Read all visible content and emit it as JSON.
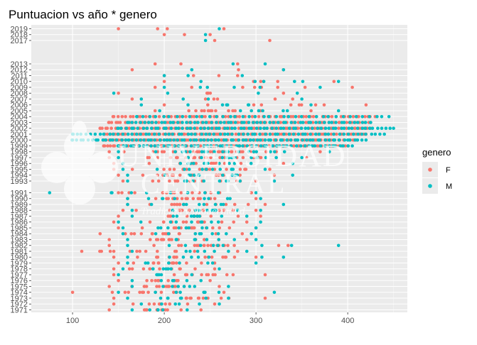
{
  "chart_data": {
    "type": "scatter",
    "title": "Puntuacion vs año * genero",
    "xlabel": "",
    "ylabel": "",
    "xlim": [
      55,
      465
    ],
    "x_ticks": [
      100,
      200,
      300,
      400
    ],
    "ylim": [
      1971,
      2019
    ],
    "y_ticks": [
      1971,
      1972,
      1973,
      1974,
      1975,
      1976,
      1977,
      1978,
      1979,
      1980,
      1981,
      1982,
      1983,
      1984,
      1985,
      1986,
      1987,
      1988,
      1989,
      1990,
      1991,
      1993,
      1994,
      1995,
      1996,
      1997,
      1998,
      1999,
      2000,
      2001,
      2002,
      2003,
      2004,
      2005,
      2006,
      2007,
      2008,
      2009,
      2010,
      2011,
      2012,
      2013,
      2017,
      2018,
      2019
    ],
    "grid": true,
    "legend": {
      "title": "genero",
      "position": "right",
      "entries": [
        "F",
        "M"
      ]
    },
    "colors": {
      "F": "#F8766D",
      "M": "#00BFC4",
      "panel": "#EBEBEB",
      "grid": "#FFFFFF"
    },
    "series": [
      {
        "name": "F",
        "color": "#F8766D",
        "ranges": [
          {
            "y": 1971,
            "min": 140,
            "max": 240,
            "n": 14
          },
          {
            "y": 1972,
            "min": 145,
            "max": 255,
            "n": 12
          },
          {
            "y": 1973,
            "min": 145,
            "max": 310,
            "n": 14
          },
          {
            "y": 1974,
            "min": 100,
            "max": 265,
            "n": 14
          },
          {
            "y": 1975,
            "min": 140,
            "max": 260,
            "n": 16
          },
          {
            "y": 1976,
            "min": 150,
            "max": 250,
            "n": 12
          },
          {
            "y": 1977,
            "min": 145,
            "max": 310,
            "n": 14
          },
          {
            "y": 1978,
            "min": 145,
            "max": 255,
            "n": 14
          },
          {
            "y": 1979,
            "min": 150,
            "max": 255,
            "n": 14
          },
          {
            "y": 1980,
            "min": 145,
            "max": 300,
            "n": 16
          },
          {
            "y": 1981,
            "min": 110,
            "max": 280,
            "n": 14
          },
          {
            "y": 1982,
            "min": 140,
            "max": 335,
            "n": 18
          },
          {
            "y": 1983,
            "min": 140,
            "max": 290,
            "n": 16
          },
          {
            "y": 1984,
            "min": 130,
            "max": 285,
            "n": 16
          },
          {
            "y": 1985,
            "min": 150,
            "max": 300,
            "n": 16
          },
          {
            "y": 1986,
            "min": 145,
            "max": 290,
            "n": 16
          },
          {
            "y": 1987,
            "min": 150,
            "max": 305,
            "n": 14
          },
          {
            "y": 1988,
            "min": 155,
            "max": 300,
            "n": 14
          },
          {
            "y": 1989,
            "min": 160,
            "max": 310,
            "n": 16
          },
          {
            "y": 1990,
            "min": 160,
            "max": 300,
            "n": 16
          },
          {
            "y": 1991,
            "min": 150,
            "max": 295,
            "n": 16
          },
          {
            "y": 1993,
            "min": 155,
            "max": 300,
            "n": 16
          },
          {
            "y": 1994,
            "min": 150,
            "max": 320,
            "n": 18
          },
          {
            "y": 1995,
            "min": 145,
            "max": 315,
            "n": 20
          },
          {
            "y": 1996,
            "min": 145,
            "max": 330,
            "n": 22
          },
          {
            "y": 1997,
            "min": 140,
            "max": 355,
            "n": 26
          },
          {
            "y": 1998,
            "min": 140,
            "max": 370,
            "n": 34
          },
          {
            "y": 1999,
            "min": 135,
            "max": 400,
            "n": 90
          },
          {
            "y": 2000,
            "min": 135,
            "max": 410,
            "n": 110
          },
          {
            "y": 2001,
            "min": 135,
            "max": 420,
            "n": 110
          },
          {
            "y": 2002,
            "min": 130,
            "max": 425,
            "n": 110
          },
          {
            "y": 2003,
            "min": 140,
            "max": 425,
            "n": 90
          },
          {
            "y": 2004,
            "min": 145,
            "max": 430,
            "n": 70
          },
          {
            "y": 2005,
            "min": 190,
            "max": 360,
            "n": 14
          },
          {
            "y": 2006,
            "min": 200,
            "max": 420,
            "n": 10
          },
          {
            "y": 2007,
            "min": 165,
            "max": 340,
            "n": 6
          },
          {
            "y": 2008,
            "min": 150,
            "max": 330,
            "n": 6
          },
          {
            "y": 2009,
            "min": 190,
            "max": 405,
            "n": 8
          },
          {
            "y": 2010,
            "min": 200,
            "max": 385,
            "n": 6
          },
          {
            "y": 2011,
            "min": 200,
            "max": 280,
            "n": 4
          },
          {
            "y": 2012,
            "min": 165,
            "max": 330,
            "n": 3
          },
          {
            "y": 2013,
            "min": 190,
            "max": 280,
            "n": 3
          },
          {
            "y": 2017,
            "min": 255,
            "max": 315,
            "n": 2
          },
          {
            "y": 2018,
            "min": 200,
            "max": 250,
            "n": 3
          },
          {
            "y": 2019,
            "min": 150,
            "max": 265,
            "n": 4
          }
        ]
      },
      {
        "name": "M",
        "color": "#00BFC4",
        "ranges": [
          {
            "y": 1971,
            "min": 165,
            "max": 225,
            "n": 6
          },
          {
            "y": 1972,
            "min": 175,
            "max": 260,
            "n": 6
          },
          {
            "y": 1973,
            "min": 160,
            "max": 270,
            "n": 8
          },
          {
            "y": 1974,
            "min": 150,
            "max": 320,
            "n": 8
          },
          {
            "y": 1975,
            "min": 165,
            "max": 270,
            "n": 8
          },
          {
            "y": 1976,
            "min": 165,
            "max": 240,
            "n": 6
          },
          {
            "y": 1977,
            "min": 150,
            "max": 230,
            "n": 6
          },
          {
            "y": 1978,
            "min": 155,
            "max": 260,
            "n": 8
          },
          {
            "y": 1979,
            "min": 160,
            "max": 300,
            "n": 8
          },
          {
            "y": 1980,
            "min": 160,
            "max": 330,
            "n": 8
          },
          {
            "y": 1981,
            "min": 165,
            "max": 290,
            "n": 8
          },
          {
            "y": 1982,
            "min": 160,
            "max": 390,
            "n": 10
          },
          {
            "y": 1983,
            "min": 160,
            "max": 300,
            "n": 10
          },
          {
            "y": 1984,
            "min": 155,
            "max": 295,
            "n": 10
          },
          {
            "y": 1985,
            "min": 155,
            "max": 300,
            "n": 10
          },
          {
            "y": 1986,
            "min": 150,
            "max": 305,
            "n": 10
          },
          {
            "y": 1987,
            "min": 165,
            "max": 290,
            "n": 10
          },
          {
            "y": 1988,
            "min": 165,
            "max": 305,
            "n": 10
          },
          {
            "y": 1989,
            "min": 160,
            "max": 330,
            "n": 10
          },
          {
            "y": 1990,
            "min": 160,
            "max": 305,
            "n": 10
          },
          {
            "y": 1991,
            "min": 75,
            "max": 300,
            "n": 10
          },
          {
            "y": 1993,
            "min": 160,
            "max": 320,
            "n": 10
          },
          {
            "y": 1994,
            "min": 160,
            "max": 340,
            "n": 12
          },
          {
            "y": 1995,
            "min": 155,
            "max": 310,
            "n": 12
          },
          {
            "y": 1996,
            "min": 155,
            "max": 340,
            "n": 14
          },
          {
            "y": 1997,
            "min": 150,
            "max": 350,
            "n": 18
          },
          {
            "y": 1998,
            "min": 150,
            "max": 380,
            "n": 22
          },
          {
            "y": 1999,
            "min": 150,
            "max": 405,
            "n": 60
          },
          {
            "y": 2000,
            "min": 100,
            "max": 420,
            "n": 80
          },
          {
            "y": 2001,
            "min": 100,
            "max": 440,
            "n": 70
          },
          {
            "y": 2002,
            "min": 150,
            "max": 450,
            "n": 70
          },
          {
            "y": 2003,
            "min": 160,
            "max": 425,
            "n": 60
          },
          {
            "y": 2004,
            "min": 170,
            "max": 445,
            "n": 40
          },
          {
            "y": 2005,
            "min": 195,
            "max": 390,
            "n": 8
          },
          {
            "y": 2006,
            "min": 175,
            "max": 360,
            "n": 8
          },
          {
            "y": 2007,
            "min": 175,
            "max": 350,
            "n": 4
          },
          {
            "y": 2008,
            "min": 145,
            "max": 345,
            "n": 4
          },
          {
            "y": 2009,
            "min": 200,
            "max": 370,
            "n": 6
          },
          {
            "y": 2010,
            "min": 240,
            "max": 390,
            "n": 6
          },
          {
            "y": 2011,
            "min": 200,
            "max": 285,
            "n": 3
          },
          {
            "y": 2012,
            "min": 230,
            "max": 330,
            "n": 2
          },
          {
            "y": 2013,
            "min": 275,
            "max": 310,
            "n": 2
          },
          {
            "y": 2017,
            "min": 245,
            "max": 250,
            "n": 1
          },
          {
            "y": 2018,
            "min": 245,
            "max": 250,
            "n": 1
          },
          {
            "y": 2019,
            "min": 260,
            "max": 265,
            "n": 1
          }
        ]
      }
    ]
  },
  "watermark": {
    "line1": "UNIVERSIDAD",
    "line2": "CENTRAL",
    "line3": "Tradición y Modernidad"
  }
}
